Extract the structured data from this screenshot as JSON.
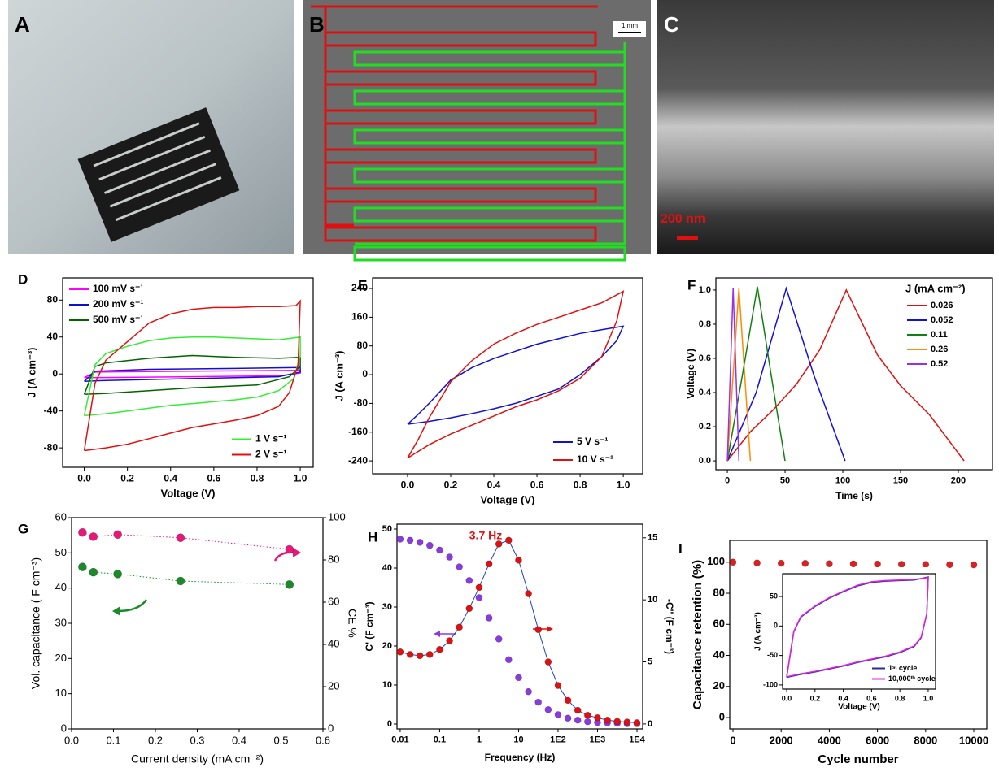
{
  "photos": [
    {
      "panel": "A"
    },
    {
      "panel": "B",
      "scale_bar": "1 mm"
    },
    {
      "panel": "C",
      "scale_bar": "200 nm"
    }
  ],
  "chart_data": [
    {
      "panel": "D",
      "type": "line",
      "xlabel": "Voltage (V)",
      "ylabel": "J (A cm⁻³)",
      "xlim": [
        -0.1,
        1.06
      ],
      "ylim": [
        -101,
        104
      ],
      "xticks": [
        {
          "value": 0,
          "label": "0.0"
        },
        0.2,
        0.4,
        0.6,
        0.8,
        {
          "value": 1,
          "label": "1.0"
        }
      ],
      "yticks": [
        -80,
        -40,
        0,
        40,
        80
      ],
      "series": [
        {
          "name": "100 mV s⁻¹",
          "color": "#ff00ff",
          "legend": "upper left",
          "x": [
            0,
            0.05,
            0.5,
            1.0,
            1.0,
            0.9,
            0.5,
            0
          ],
          "values": [
            -4,
            2,
            3,
            4,
            1,
            -2,
            -3,
            -4
          ]
        },
        {
          "name": "200 mV s⁻¹",
          "color": "#1010d0",
          "legend": "upper left",
          "x": [
            0,
            0.05,
            0.3,
            0.7,
            1.0,
            1.0,
            0.9,
            0.5,
            0.1,
            0
          ],
          "values": [
            -8,
            3,
            5,
            6,
            7,
            2,
            -3,
            -5,
            -7,
            -8
          ]
        },
        {
          "name": "500 mV s⁻¹",
          "color": "#006400",
          "legend": "upper left",
          "x": [
            0,
            0.05,
            0.1,
            0.3,
            0.5,
            0.7,
            0.9,
            1.0,
            1.0,
            0.95,
            0.8,
            0.5,
            0.3,
            0.1,
            0
          ],
          "values": [
            -22,
            8,
            12,
            17,
            20,
            18,
            17,
            18,
            8,
            -3,
            -12,
            -15,
            -18,
            -21,
            -22
          ]
        },
        {
          "name": "1 V s⁻¹",
          "color": "#33ee33",
          "legend": "lower right",
          "x": [
            0,
            0.05,
            0.1,
            0.2,
            0.3,
            0.4,
            0.5,
            0.6,
            0.7,
            0.8,
            0.9,
            1.0,
            1.0,
            0.97,
            0.9,
            0.8,
            0.7,
            0.6,
            0.5,
            0.4,
            0.3,
            0.2,
            0.1,
            0
          ],
          "values": [
            -45,
            10,
            22,
            30,
            36,
            39,
            40,
            40,
            39,
            38,
            37,
            40,
            20,
            -5,
            -18,
            -25,
            -28,
            -30,
            -32,
            -34,
            -37,
            -40,
            -43,
            -45
          ]
        },
        {
          "name": "2 V s⁻¹",
          "color": "#e01010",
          "legend": "lower right",
          "x": [
            0,
            0.05,
            0.1,
            0.2,
            0.3,
            0.4,
            0.5,
            0.6,
            0.7,
            0.8,
            0.9,
            0.98,
            1.0,
            0.99,
            0.95,
            0.9,
            0.8,
            0.7,
            0.6,
            0.5,
            0.4,
            0.3,
            0.2,
            0.1,
            0
          ],
          "values": [
            -83,
            -10,
            15,
            35,
            55,
            65,
            70,
            72,
            72,
            73,
            73,
            74,
            79,
            10,
            -20,
            -35,
            -45,
            -50,
            -54,
            -58,
            -64,
            -70,
            -76,
            -80,
            -83
          ]
        }
      ]
    },
    {
      "panel": "E",
      "type": "line",
      "xlabel": "Voltage (V)",
      "ylabel": "J (A cm⁻³)",
      "xlim": [
        -0.162,
        1.09
      ],
      "ylim": [
        -276,
        269.5
      ],
      "xticks": [
        {
          "value": 0,
          "label": "0.0"
        },
        0.2,
        0.4,
        0.6,
        0.8,
        {
          "value": 1,
          "label": "1.0"
        }
      ],
      "yticks": [
        -240,
        -160,
        -80,
        0,
        80,
        160,
        240
      ],
      "series": [
        {
          "name": "5 V s⁻¹",
          "color": "#1010d0",
          "legend": "lower right",
          "x": [
            0,
            0.05,
            0.1,
            0.2,
            0.3,
            0.4,
            0.5,
            0.6,
            0.7,
            0.8,
            0.9,
            1.0,
            0.97,
            0.9,
            0.8,
            0.7,
            0.6,
            0.5,
            0.4,
            0.3,
            0.2,
            0.1,
            0
          ],
          "values": [
            -138,
            -110,
            -80,
            -15,
            20,
            45,
            65,
            85,
            100,
            115,
            125,
            135,
            95,
            50,
            0,
            -40,
            -60,
            -80,
            -95,
            -108,
            -120,
            -130,
            -138
          ]
        },
        {
          "name": "10 V s⁻¹",
          "color": "#e01010",
          "legend": "lower right",
          "x": [
            0,
            0.05,
            0.1,
            0.2,
            0.3,
            0.4,
            0.5,
            0.6,
            0.7,
            0.8,
            0.9,
            1.0,
            0.97,
            0.9,
            0.8,
            0.7,
            0.6,
            0.5,
            0.4,
            0.3,
            0.2,
            0.1,
            0
          ],
          "values": [
            -232,
            -180,
            -120,
            -20,
            40,
            85,
            115,
            140,
            160,
            180,
            200,
            232,
            150,
            50,
            -10,
            -45,
            -70,
            -90,
            -115,
            -140,
            -165,
            -195,
            -232
          ]
        }
      ]
    },
    {
      "panel": "F",
      "type": "line",
      "xlabel": "Time (s)",
      "ylabel": "Voltage (V)",
      "xlim": [
        -9.9,
        229.6
      ],
      "ylim": [
        -0.052,
        1.071
      ],
      "xticks": [
        0,
        50,
        100,
        150,
        200
      ],
      "yticks": [
        {
          "value": 0,
          "label": "0.0"
        },
        0.2,
        0.4,
        0.6,
        0.8,
        {
          "value": 1,
          "label": "1.0"
        }
      ],
      "legend_title": "J (mA cm⁻²)",
      "series": [
        {
          "name": "0.026",
          "color": "#e01010",
          "legend": "upper right",
          "x": [
            0,
            20,
            40,
            60,
            80,
            103,
            130,
            150,
            175,
            205
          ],
          "values": [
            0,
            0.17,
            0.3,
            0.45,
            0.65,
            1.0,
            0.62,
            0.44,
            0.27,
            0
          ]
        },
        {
          "name": "0.052",
          "color": "#1010e0",
          "legend": "upper right",
          "x": [
            0,
            25,
            51,
            75,
            102
          ],
          "values": [
            0,
            0.4,
            1.01,
            0.5,
            0
          ]
        },
        {
          "name": "0.11",
          "color": "#108010",
          "legend": "upper right",
          "x": [
            0,
            13,
            26,
            38,
            50
          ],
          "values": [
            0,
            0.5,
            1.02,
            0.5,
            0
          ]
        },
        {
          "name": "0.26",
          "color": "#ff8c00",
          "legend": "upper right",
          "x": [
            0,
            10,
            20
          ],
          "values": [
            0,
            1.01,
            0
          ]
        },
        {
          "name": "0.52",
          "color": "#9a30e0",
          "legend": "upper right",
          "x": [
            0,
            5,
            10
          ],
          "values": [
            0,
            1.01,
            0
          ]
        }
      ]
    },
    {
      "panel": "G",
      "type": "scatter",
      "xlabel": "Current density (mA cm⁻²)",
      "ylabel": "Vol. capacitance ( F cm⁻³)",
      "y2label": "CE %",
      "xlim": [
        0,
        0.6
      ],
      "ylim": [
        0,
        60
      ],
      "y2lim": [
        0,
        100
      ],
      "xticks": [
        {
          "value": 0,
          "label": "0.0"
        },
        0.1,
        0.2,
        0.3,
        0.4,
        0.5,
        0.6
      ],
      "yticks": [
        0,
        10,
        20,
        30,
        40,
        50,
        60
      ],
      "y2ticks": [
        0,
        20,
        40,
        60,
        80,
        100
      ],
      "x": [
        0.026,
        0.052,
        0.11,
        0.26,
        0.52
      ],
      "series": [
        {
          "color": "#1a8a2a",
          "marker": true,
          "linestyle": "dotted",
          "values": [
            46,
            44.5,
            44,
            42,
            41
          ]
        },
        {
          "color": "#e8187a",
          "marker": true,
          "linestyle": "dotted",
          "axis": "y2",
          "values": [
            93,
            91,
            92,
            90.5,
            85
          ]
        }
      ]
    },
    {
      "panel": "H",
      "type": "scatter",
      "xlabel": "Frequency (Hz)",
      "ylabel": "C' (F cm⁻³)",
      "y2label": "-C'' (F cm⁻³)",
      "xlog": true,
      "xlim": [
        0.0083,
        13950
      ],
      "ylim": [
        -1.25,
        51.25
      ],
      "y2lim": [
        -0.4,
        16.1
      ],
      "xticks": [
        0.01,
        0.1,
        1,
        10,
        {
          "value": 100,
          "label": "1E2"
        },
        {
          "value": 1000,
          "label": "1E3"
        },
        {
          "value": 10000,
          "label": "1E4"
        }
      ],
      "yticks": [
        0,
        10,
        20,
        30,
        40,
        50
      ],
      "y2ticks": [
        0,
        5,
        10,
        15
      ],
      "annotation": "3.7 Hz",
      "x": [
        0.01,
        0.0178,
        0.0316,
        0.0562,
        0.1,
        0.178,
        0.316,
        0.562,
        1,
        1.78,
        3.16,
        5.62,
        10,
        17.8,
        31.6,
        56.2,
        100,
        178,
        316,
        562,
        1000,
        1780,
        3160,
        5620,
        10000
      ],
      "series": [
        {
          "color": "#8a3be0",
          "marker": true,
          "values": [
            47.4,
            47.1,
            46.6,
            45.8,
            44.6,
            42.8,
            40.3,
            36.8,
            32.4,
            27.2,
            21.8,
            16.5,
            11.9,
            8.3,
            5.6,
            3.7,
            2.4,
            1.5,
            1.0,
            0.6,
            0.4,
            0.3,
            0.2,
            0.1,
            0.1
          ]
        },
        {
          "color": "#e01010",
          "marker": true,
          "linestyle": "solid",
          "line_color": "#2040c0",
          "axis": "y2",
          "values": [
            5.8,
            5.6,
            5.5,
            5.6,
            6.0,
            6.7,
            7.8,
            9.3,
            11.0,
            12.9,
            14.5,
            14.8,
            13.2,
            10.5,
            7.6,
            5.0,
            3.1,
            1.9,
            1.1,
            0.7,
            0.5,
            0.3,
            0.2,
            0.15,
            0.1
          ]
        }
      ]
    },
    {
      "panel": "I",
      "type": "scatter",
      "xlabel": "Cycle number",
      "ylabel": "Capacitance retention (%)",
      "xlim": [
        -135,
        10540
      ],
      "ylim": [
        -7.3,
        114
      ],
      "xticks": [
        0,
        2000,
        4000,
        6000,
        8000,
        10000
      ],
      "yticks": [
        0,
        20,
        40,
        60,
        80,
        100
      ],
      "x": [
        0,
        1000,
        2000,
        3000,
        4000,
        5000,
        6000,
        7000,
        8000,
        9000,
        10000
      ],
      "series": [
        {
          "color": "#e02020",
          "marker": true,
          "values": [
            100,
            99.5,
            99.3,
            99.2,
            99,
            98.9,
            98.8,
            98.6,
            98.5,
            98.4,
            98.3
          ]
        }
      ]
    },
    {
      "type": "line",
      "xlabel": "Voltage (V)",
      "ylabel": "J (A cm⁻³)",
      "xlim": [
        -0.029,
        1.052
      ],
      "ylim": [
        -107,
        88.6
      ],
      "xticks": [
        {
          "value": 0,
          "label": "0.0"
        },
        0.2,
        0.4,
        0.6,
        0.8,
        {
          "value": 1,
          "label": "1.0"
        }
      ],
      "yticks": [
        -100,
        -50,
        0,
        50
      ],
      "series": [
        {
          "name": "1ˢᵗ cycle",
          "color": "#2a2aa0",
          "legend": "lower right",
          "x": [
            0,
            0.05,
            0.1,
            0.2,
            0.3,
            0.4,
            0.5,
            0.6,
            0.7,
            0.8,
            0.9,
            1.0,
            0.99,
            0.95,
            0.9,
            0.8,
            0.7,
            0.6,
            0.5,
            0.4,
            0.3,
            0.2,
            0.1,
            0
          ],
          "values": [
            -87,
            -10,
            15,
            33,
            47,
            58,
            68,
            74,
            76,
            77,
            78,
            83,
            20,
            -20,
            -35,
            -45,
            -52,
            -57,
            -62,
            -68,
            -73,
            -78,
            -82,
            -87
          ]
        },
        {
          "name": "10,000ᵗʰ cycle",
          "color": "#e020e0",
          "legend": "lower right",
          "x": [
            0,
            0.05,
            0.1,
            0.2,
            0.3,
            0.4,
            0.5,
            0.6,
            0.7,
            0.8,
            0.9,
            1.0,
            0.99,
            0.95,
            0.9,
            0.8,
            0.7,
            0.6,
            0.5,
            0.4,
            0.3,
            0.2,
            0.1,
            0
          ],
          "values": [
            -86,
            -9,
            16,
            34,
            48,
            59,
            69,
            75,
            77,
            78,
            79,
            82,
            21,
            -19,
            -34,
            -44,
            -51,
            -56,
            -61,
            -67,
            -72,
            -77,
            -81,
            -86
          ]
        }
      ]
    }
  ]
}
